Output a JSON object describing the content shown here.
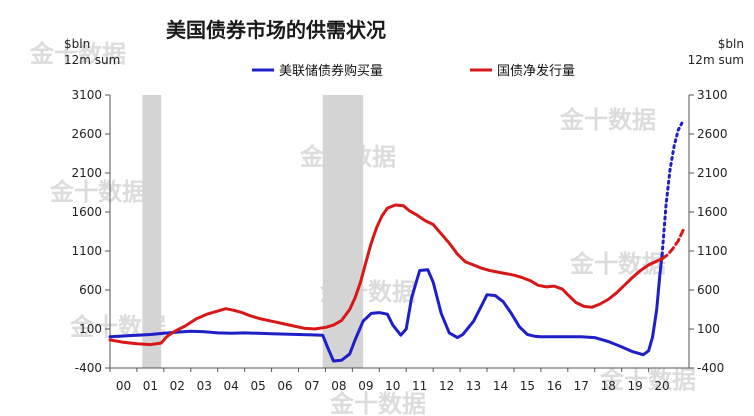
{
  "chart_data": {
    "type": "line",
    "title": "美国债券市场的供需状况",
    "unit_left": [
      "$bln",
      "12m sum"
    ],
    "unit_right": [
      "$bln",
      "12m sum"
    ],
    "x_tick_labels": [
      "00",
      "01",
      "02",
      "03",
      "04",
      "05",
      "06",
      "07",
      "08",
      "09",
      "10",
      "11",
      "12",
      "13",
      "14",
      "15",
      "16",
      "17",
      "18",
      "19",
      "20"
    ],
    "y_ticks": [
      -400,
      100,
      600,
      1100,
      1600,
      2100,
      2600,
      3100
    ],
    "ylim": [
      -400,
      3100
    ],
    "xlim": [
      2000.0,
      2021.5
    ],
    "shaded_periods": [
      [
        2001.2,
        2001.9
      ],
      [
        2007.9,
        2009.4
      ]
    ],
    "legend_placement": "top",
    "grid": false,
    "watermark": "金十数据",
    "series": [
      {
        "name": "美联储债券购买量",
        "color": "#1f1fc8",
        "points": [
          [
            2000.0,
            0
          ],
          [
            2000.5,
            10
          ],
          [
            2001.0,
            20
          ],
          [
            2001.5,
            30
          ],
          [
            2002.0,
            45
          ],
          [
            2002.5,
            60
          ],
          [
            2003.0,
            70
          ],
          [
            2003.5,
            65
          ],
          [
            2004.0,
            50
          ],
          [
            2004.5,
            45
          ],
          [
            2005.0,
            50
          ],
          [
            2005.5,
            45
          ],
          [
            2006.0,
            40
          ],
          [
            2006.5,
            35
          ],
          [
            2007.0,
            30
          ],
          [
            2007.5,
            25
          ],
          [
            2007.9,
            20
          ],
          [
            2008.1,
            -150
          ],
          [
            2008.3,
            -310
          ],
          [
            2008.6,
            -300
          ],
          [
            2008.9,
            -220
          ],
          [
            2009.1,
            -40
          ],
          [
            2009.4,
            200
          ],
          [
            2009.7,
            300
          ],
          [
            2010.0,
            310
          ],
          [
            2010.3,
            290
          ],
          [
            2010.5,
            150
          ],
          [
            2010.8,
            20
          ],
          [
            2011.0,
            100
          ],
          [
            2011.2,
            500
          ],
          [
            2011.5,
            850
          ],
          [
            2011.8,
            860
          ],
          [
            2012.0,
            700
          ],
          [
            2012.3,
            300
          ],
          [
            2012.6,
            50
          ],
          [
            2012.9,
            -10
          ],
          [
            2013.1,
            30
          ],
          [
            2013.5,
            200
          ],
          [
            2013.8,
            400
          ],
          [
            2014.0,
            540
          ],
          [
            2014.3,
            530
          ],
          [
            2014.6,
            450
          ],
          [
            2014.9,
            300
          ],
          [
            2015.2,
            130
          ],
          [
            2015.5,
            30
          ],
          [
            2015.8,
            5
          ],
          [
            2016.0,
            0
          ],
          [
            2016.5,
            0
          ],
          [
            2017.0,
            0
          ],
          [
            2017.5,
            0
          ],
          [
            2018.0,
            -10
          ],
          [
            2018.5,
            -60
          ],
          [
            2019.0,
            -130
          ],
          [
            2019.4,
            -190
          ],
          [
            2019.8,
            -230
          ],
          [
            2020.0,
            -180
          ],
          [
            2020.15,
            0
          ],
          [
            2020.3,
            350
          ],
          [
            2020.42,
            800
          ],
          [
            2020.5,
            1050
          ]
        ],
        "projection": [
          [
            2020.5,
            1050
          ],
          [
            2020.65,
            1700
          ],
          [
            2020.8,
            2150
          ],
          [
            2020.95,
            2450
          ],
          [
            2021.1,
            2650
          ],
          [
            2021.25,
            2750
          ]
        ]
      },
      {
        "name": "国债净发行量",
        "color": "#d81818",
        "points": [
          [
            2000.0,
            -40
          ],
          [
            2000.5,
            -70
          ],
          [
            2001.0,
            -90
          ],
          [
            2001.5,
            -100
          ],
          [
            2001.9,
            -80
          ],
          [
            2002.1,
            0
          ],
          [
            2002.4,
            70
          ],
          [
            2002.8,
            140
          ],
          [
            2003.2,
            230
          ],
          [
            2003.6,
            290
          ],
          [
            2004.0,
            330
          ],
          [
            2004.3,
            360
          ],
          [
            2004.6,
            340
          ],
          [
            2004.9,
            310
          ],
          [
            2005.2,
            270
          ],
          [
            2005.6,
            230
          ],
          [
            2006.0,
            200
          ],
          [
            2006.4,
            170
          ],
          [
            2006.8,
            140
          ],
          [
            2007.2,
            110
          ],
          [
            2007.6,
            100
          ],
          [
            2008.0,
            120
          ],
          [
            2008.3,
            150
          ],
          [
            2008.6,
            210
          ],
          [
            2008.9,
            350
          ],
          [
            2009.1,
            500
          ],
          [
            2009.3,
            700
          ],
          [
            2009.5,
            950
          ],
          [
            2009.7,
            1200
          ],
          [
            2009.9,
            1400
          ],
          [
            2010.1,
            1550
          ],
          [
            2010.3,
            1650
          ],
          [
            2010.6,
            1690
          ],
          [
            2010.9,
            1680
          ],
          [
            2011.1,
            1620
          ],
          [
            2011.4,
            1560
          ],
          [
            2011.7,
            1490
          ],
          [
            2012.0,
            1440
          ],
          [
            2012.3,
            1320
          ],
          [
            2012.6,
            1200
          ],
          [
            2012.9,
            1060
          ],
          [
            2013.2,
            960
          ],
          [
            2013.5,
            920
          ],
          [
            2013.8,
            880
          ],
          [
            2014.1,
            850
          ],
          [
            2014.4,
            830
          ],
          [
            2014.7,
            810
          ],
          [
            2015.0,
            790
          ],
          [
            2015.3,
            760
          ],
          [
            2015.6,
            720
          ],
          [
            2015.9,
            660
          ],
          [
            2016.2,
            640
          ],
          [
            2016.5,
            650
          ],
          [
            2016.8,
            610
          ],
          [
            2017.0,
            540
          ],
          [
            2017.3,
            440
          ],
          [
            2017.6,
            390
          ],
          [
            2017.9,
            380
          ],
          [
            2018.2,
            420
          ],
          [
            2018.5,
            480
          ],
          [
            2018.8,
            560
          ],
          [
            2019.1,
            660
          ],
          [
            2019.4,
            760
          ],
          [
            2019.7,
            850
          ],
          [
            2020.0,
            920
          ],
          [
            2020.3,
            970
          ],
          [
            2020.5,
            1000
          ]
        ],
        "projection": [
          [
            2020.5,
            1000
          ],
          [
            2020.7,
            1050
          ],
          [
            2020.9,
            1130
          ],
          [
            2021.1,
            1230
          ],
          [
            2021.3,
            1380
          ]
        ]
      }
    ]
  }
}
